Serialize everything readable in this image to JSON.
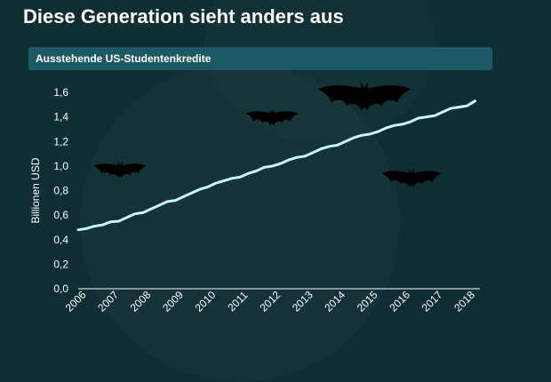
{
  "header": {
    "title": "Diese Generation sieht anders aus",
    "subtitle": "Ausstehende US-Studentenkredite"
  },
  "colors": {
    "background": "#0f2e33",
    "subtitle_bar": "#1d5964",
    "line": "#c9f6ff",
    "text": "#ffffff",
    "bats": "#000000"
  },
  "decorations": [
    "bat-icon",
    "bat-icon",
    "bat-icon",
    "bat-icon"
  ],
  "chart_data": {
    "type": "line",
    "title": "Ausstehende US-Studentenkredite",
    "xlabel": "",
    "ylabel": "Billionen USD",
    "xlim": [
      2006,
      2018.4
    ],
    "ylim": [
      0,
      1.6
    ],
    "x_ticks": [
      "2006",
      "2007",
      "2008",
      "2009",
      "2010",
      "2011",
      "2012",
      "2013",
      "2014",
      "2015",
      "2016",
      "2017",
      "2018"
    ],
    "y_ticks": [
      "0,0",
      "0,2",
      "0,4",
      "0,6",
      "0,8",
      "1,0",
      "1,2",
      "1,4",
      "1,6"
    ],
    "grid": false,
    "series": [
      {
        "x": [
          2006.0,
          2006.25,
          2006.5,
          2006.75,
          2007.0,
          2007.25,
          2007.5,
          2007.75,
          2008.0,
          2008.25,
          2008.5,
          2008.75,
          2009.0,
          2009.25,
          2009.5,
          2009.75,
          2010.0,
          2010.25,
          2010.5,
          2010.75,
          2011.0,
          2011.25,
          2011.5,
          2011.75,
          2012.0,
          2012.25,
          2012.5,
          2012.75,
          2013.0,
          2013.25,
          2013.5,
          2013.75,
          2014.0,
          2014.25,
          2014.5,
          2014.75,
          2015.0,
          2015.25,
          2015.5,
          2015.75,
          2016.0,
          2016.25,
          2016.5,
          2016.75,
          2017.0,
          2017.25,
          2017.5,
          2017.75,
          2018.0,
          2018.25
        ],
        "y": [
          0.48,
          0.49,
          0.51,
          0.52,
          0.545,
          0.55,
          0.58,
          0.61,
          0.62,
          0.65,
          0.68,
          0.71,
          0.72,
          0.75,
          0.78,
          0.81,
          0.83,
          0.86,
          0.88,
          0.9,
          0.91,
          0.94,
          0.96,
          0.99,
          1.0,
          1.02,
          1.05,
          1.07,
          1.08,
          1.11,
          1.14,
          1.16,
          1.17,
          1.2,
          1.23,
          1.25,
          1.26,
          1.28,
          1.31,
          1.33,
          1.34,
          1.36,
          1.39,
          1.4,
          1.41,
          1.44,
          1.47,
          1.48,
          1.49,
          1.53
        ]
      }
    ]
  }
}
